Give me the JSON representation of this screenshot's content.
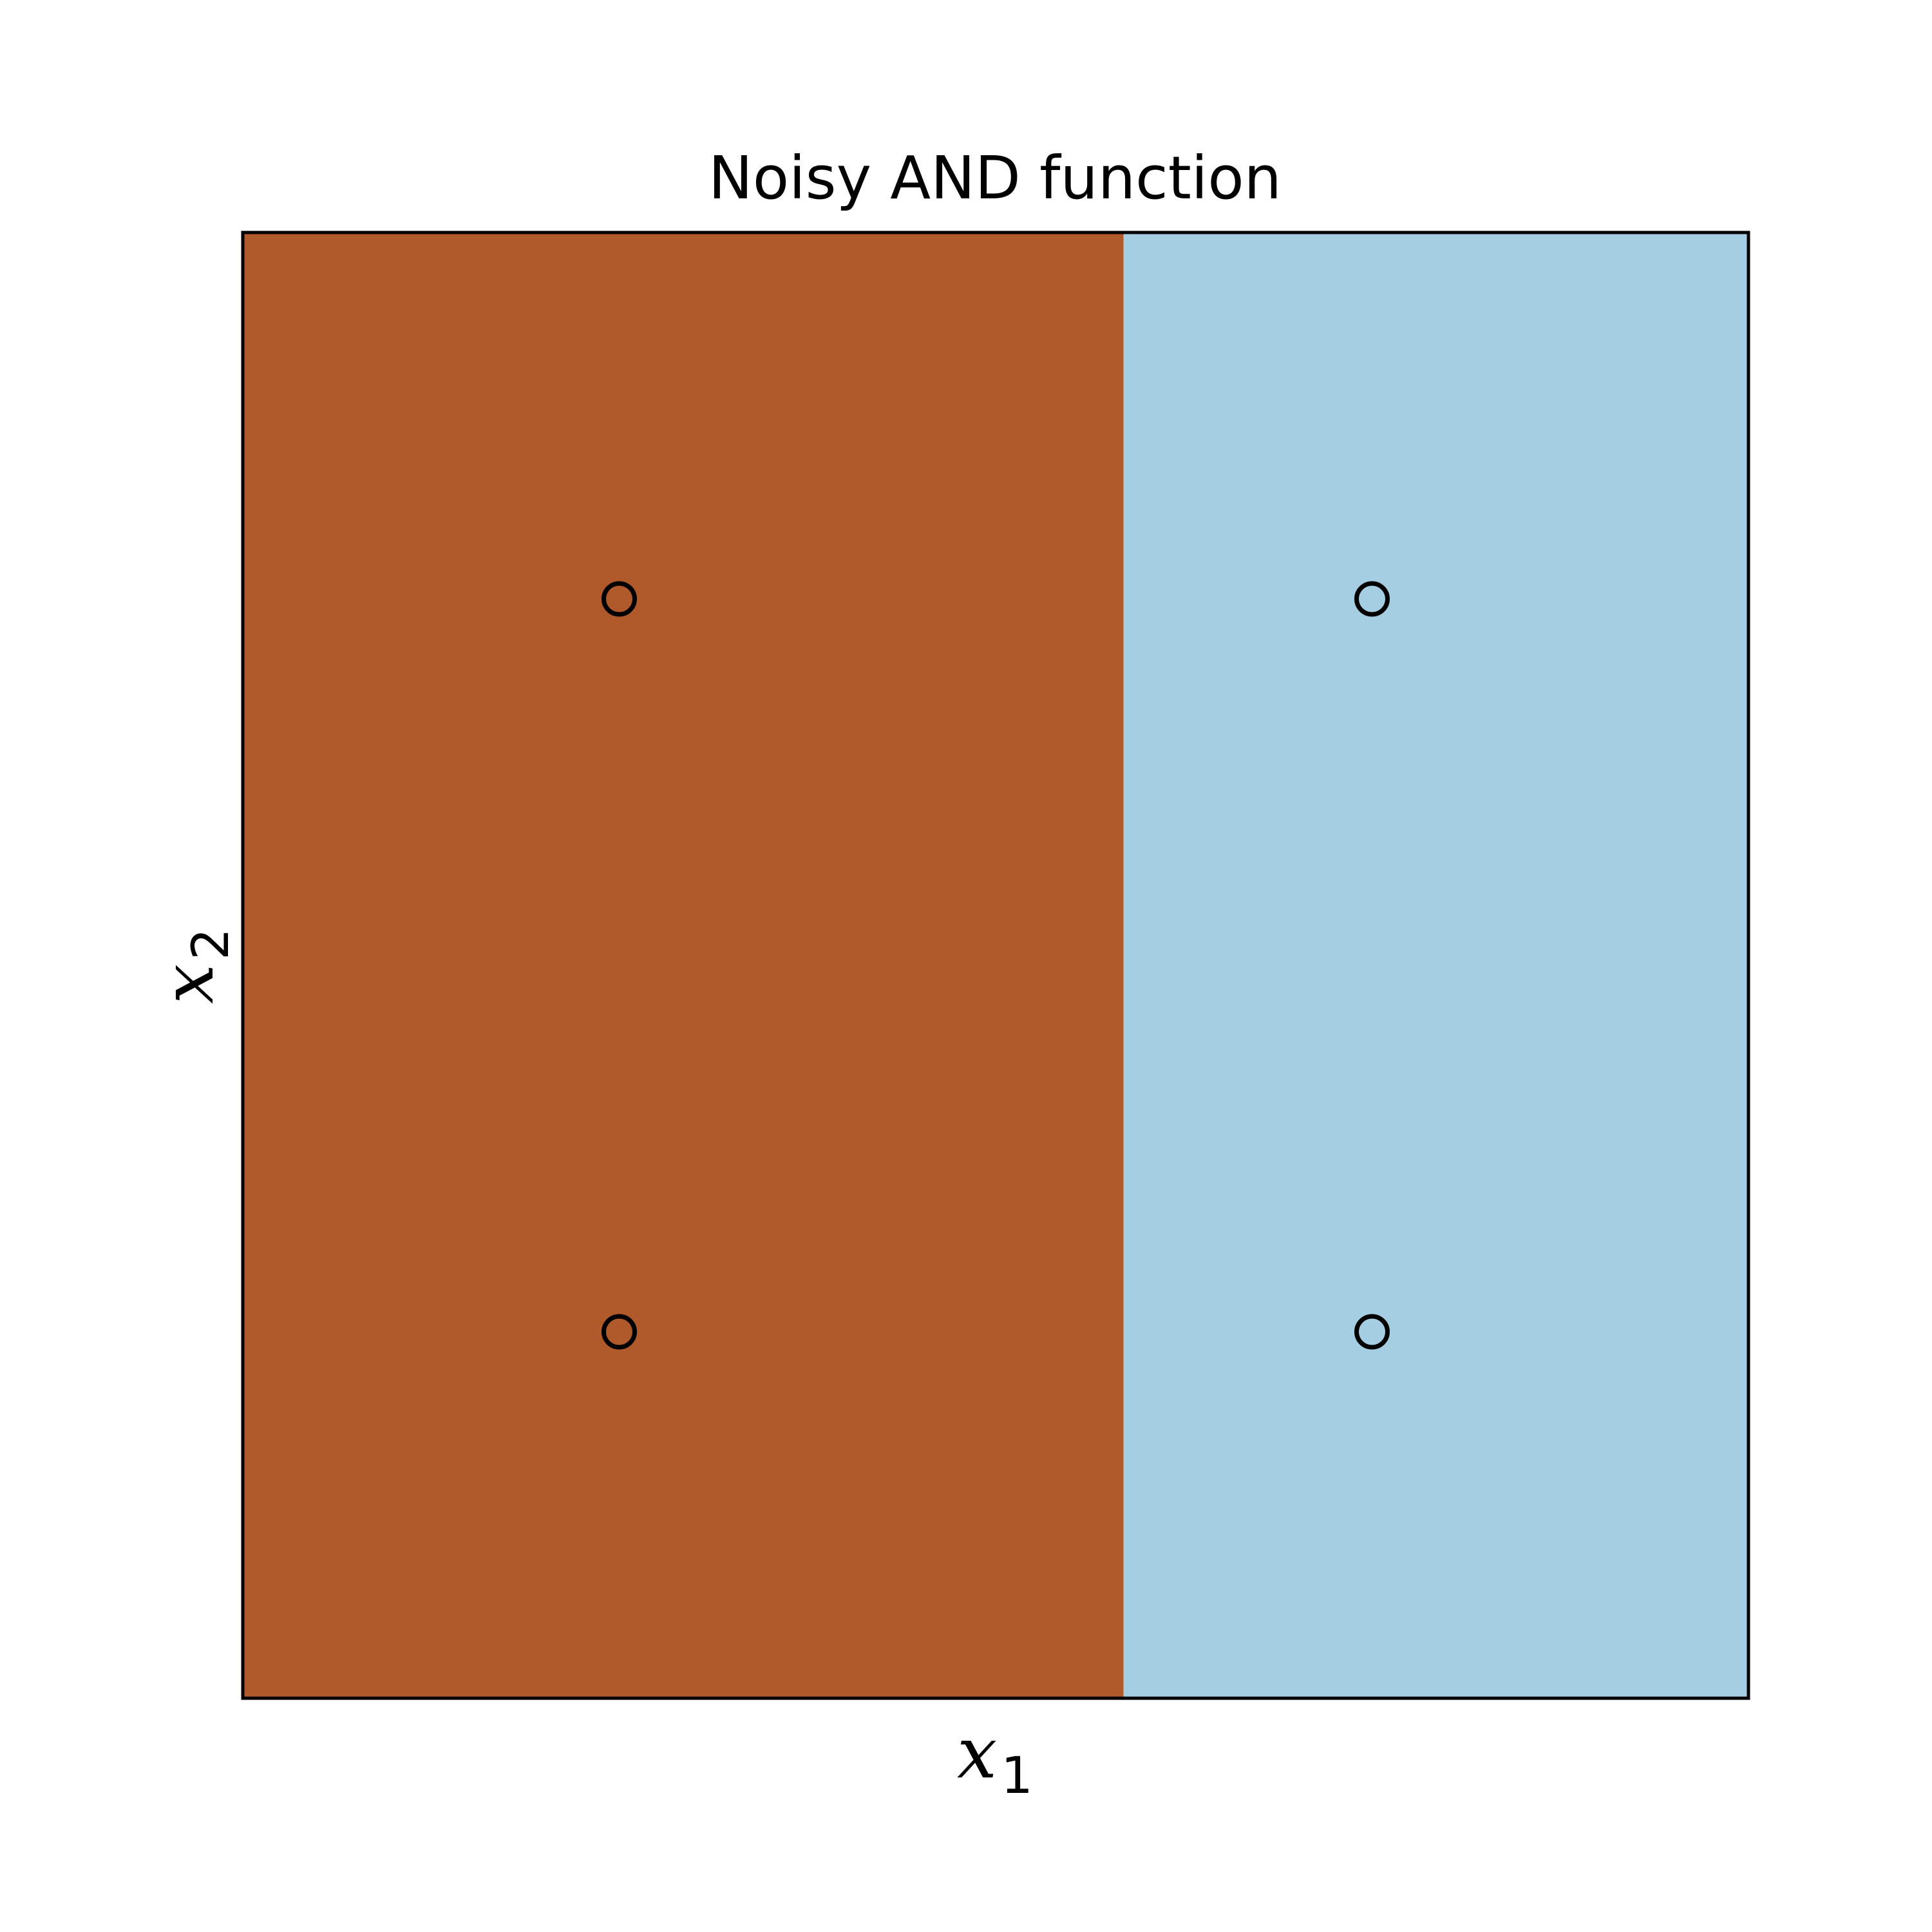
{
  "chart_data": {
    "type": "scatter",
    "title": "Noisy AND function",
    "xlabel": {
      "base": "x",
      "sub": "1"
    },
    "ylabel": {
      "base": "x",
      "sub": "2"
    },
    "xlim": [
      0,
      1
    ],
    "ylim": [
      0,
      1
    ],
    "grid": false,
    "ticks": "none",
    "decision_regions": [
      {
        "x_range": [
          0,
          0.585
        ],
        "color": "#b0592a"
      },
      {
        "x_range": [
          0.585,
          1
        ],
        "color": "#a6cee3"
      }
    ],
    "points": [
      {
        "x": 0.25,
        "y": 0.75
      },
      {
        "x": 0.75,
        "y": 0.75
      },
      {
        "x": 0.25,
        "y": 0.25
      },
      {
        "x": 0.75,
        "y": 0.25
      }
    ],
    "marker": {
      "shape": "circle",
      "fill": "none",
      "edge_color": "#000000"
    },
    "frame_color": "#000000"
  }
}
